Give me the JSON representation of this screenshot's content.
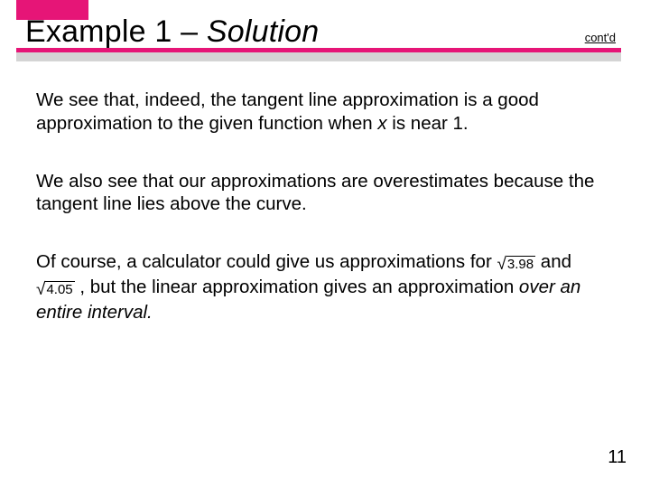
{
  "colors": {
    "accent": "#e61577",
    "grey_bar": "#aaa9a9",
    "background": "#ffffff"
  },
  "header": {
    "title_prefix": "Example 1 – ",
    "title_italic": "Solution",
    "contd": "cont'd"
  },
  "body": {
    "p1_a": "We see that, indeed, the tangent line approximation is a good approximation to the given function when ",
    "p1_x": "x",
    "p1_b": " is near 1.",
    "p2": "We also see that our approximations are overestimates because the tangent line lies above the curve.",
    "p3_a": "Of course, a calculator could give us approximations for ",
    "p3_sqrt1": "3.98",
    "p3_and": " and ",
    "p3_sqrt2": "4.05",
    "p3_b": " , but the linear approximation gives an approximation ",
    "p3_italic": "over an entire interval.",
    "surd": "√"
  },
  "page_number": "11"
}
